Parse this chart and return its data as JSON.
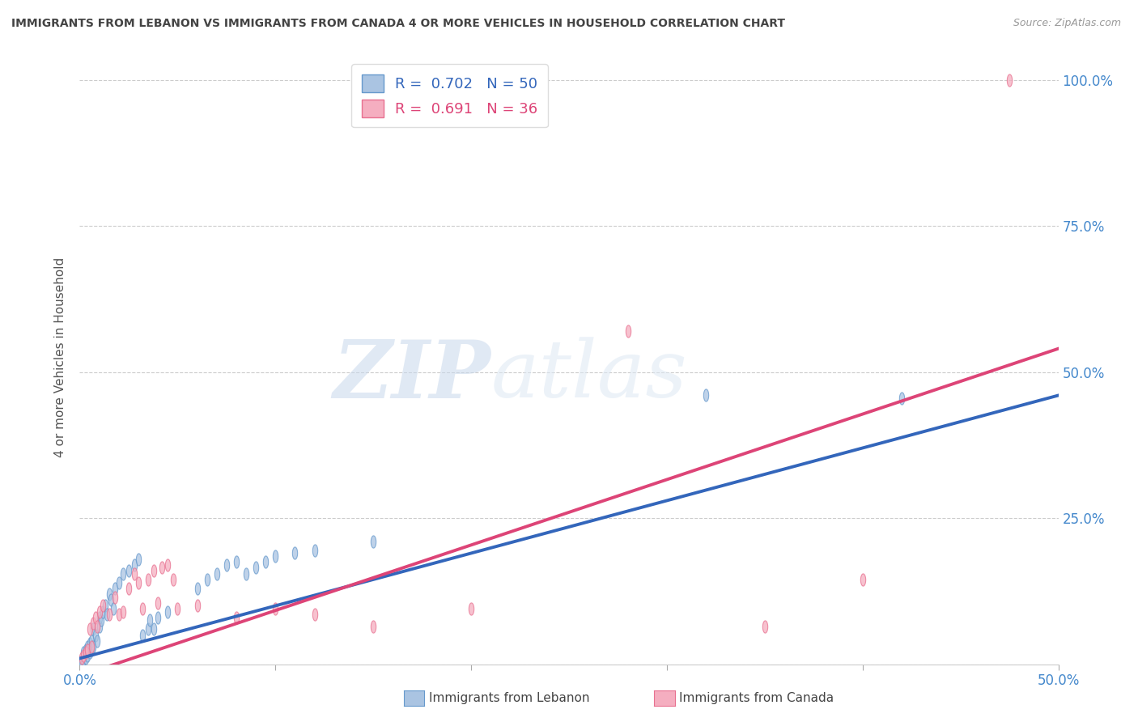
{
  "title": "IMMIGRANTS FROM LEBANON VS IMMIGRANTS FROM CANADA 4 OR MORE VEHICLES IN HOUSEHOLD CORRELATION CHART",
  "source": "Source: ZipAtlas.com",
  "ylabel": "4 or more Vehicles in Household",
  "xlim": [
    0.0,
    0.5
  ],
  "ylim": [
    0.0,
    1.05
  ],
  "legend_blue_r": "0.702",
  "legend_blue_n": "50",
  "legend_pink_r": "0.691",
  "legend_pink_n": "36",
  "blue_color": "#aac4e2",
  "pink_color": "#f5aec0",
  "blue_edge_color": "#6699cc",
  "pink_edge_color": "#e87090",
  "blue_line_color": "#3366bb",
  "pink_line_color": "#dd4477",
  "blue_label": "Immigrants from Lebanon",
  "pink_label": "Immigrants from Canada",
  "blue_scatter": [
    [
      0.001,
      0.005
    ],
    [
      0.002,
      0.008
    ],
    [
      0.002,
      0.02
    ],
    [
      0.003,
      0.01
    ],
    [
      0.003,
      0.025
    ],
    [
      0.004,
      0.015
    ],
    [
      0.004,
      0.03
    ],
    [
      0.005,
      0.02
    ],
    [
      0.005,
      0.035
    ],
    [
      0.006,
      0.025
    ],
    [
      0.006,
      0.04
    ],
    [
      0.007,
      0.03
    ],
    [
      0.007,
      0.06
    ],
    [
      0.008,
      0.05
    ],
    [
      0.009,
      0.04
    ],
    [
      0.01,
      0.065
    ],
    [
      0.01,
      0.08
    ],
    [
      0.011,
      0.075
    ],
    [
      0.012,
      0.09
    ],
    [
      0.013,
      0.1
    ],
    [
      0.014,
      0.085
    ],
    [
      0.015,
      0.12
    ],
    [
      0.016,
      0.11
    ],
    [
      0.017,
      0.095
    ],
    [
      0.018,
      0.13
    ],
    [
      0.02,
      0.14
    ],
    [
      0.022,
      0.155
    ],
    [
      0.025,
      0.16
    ],
    [
      0.028,
      0.17
    ],
    [
      0.03,
      0.18
    ],
    [
      0.032,
      0.05
    ],
    [
      0.035,
      0.06
    ],
    [
      0.036,
      0.075
    ],
    [
      0.038,
      0.06
    ],
    [
      0.04,
      0.08
    ],
    [
      0.045,
      0.09
    ],
    [
      0.06,
      0.13
    ],
    [
      0.065,
      0.145
    ],
    [
      0.07,
      0.155
    ],
    [
      0.075,
      0.17
    ],
    [
      0.08,
      0.175
    ],
    [
      0.085,
      0.155
    ],
    [
      0.09,
      0.165
    ],
    [
      0.095,
      0.175
    ],
    [
      0.1,
      0.185
    ],
    [
      0.11,
      0.19
    ],
    [
      0.12,
      0.195
    ],
    [
      0.15,
      0.21
    ],
    [
      0.32,
      0.46
    ],
    [
      0.42,
      0.455
    ]
  ],
  "pink_scatter": [
    [
      0.001,
      0.01
    ],
    [
      0.002,
      0.015
    ],
    [
      0.003,
      0.02
    ],
    [
      0.004,
      0.025
    ],
    [
      0.005,
      0.06
    ],
    [
      0.006,
      0.03
    ],
    [
      0.007,
      0.07
    ],
    [
      0.008,
      0.08
    ],
    [
      0.009,
      0.065
    ],
    [
      0.01,
      0.09
    ],
    [
      0.012,
      0.1
    ],
    [
      0.015,
      0.085
    ],
    [
      0.018,
      0.115
    ],
    [
      0.02,
      0.085
    ],
    [
      0.022,
      0.09
    ],
    [
      0.025,
      0.13
    ],
    [
      0.028,
      0.155
    ],
    [
      0.03,
      0.14
    ],
    [
      0.032,
      0.095
    ],
    [
      0.035,
      0.145
    ],
    [
      0.038,
      0.16
    ],
    [
      0.04,
      0.105
    ],
    [
      0.042,
      0.165
    ],
    [
      0.045,
      0.17
    ],
    [
      0.048,
      0.145
    ],
    [
      0.05,
      0.095
    ],
    [
      0.06,
      0.1
    ],
    [
      0.08,
      0.08
    ],
    [
      0.1,
      0.095
    ],
    [
      0.12,
      0.085
    ],
    [
      0.15,
      0.065
    ],
    [
      0.2,
      0.095
    ],
    [
      0.28,
      0.57
    ],
    [
      0.35,
      0.065
    ],
    [
      0.4,
      0.145
    ],
    [
      0.475,
      1.0
    ]
  ],
  "blue_line_x": [
    0.0,
    0.5
  ],
  "blue_line_y": [
    0.01,
    0.46
  ],
  "pink_line_x": [
    0.0,
    0.5
  ],
  "pink_line_y": [
    -0.02,
    0.54
  ],
  "watermark_zip": "ZIP",
  "watermark_atlas": "atlas",
  "background_color": "#ffffff",
  "grid_color": "#cccccc",
  "tick_label_color": "#4488cc",
  "title_color": "#444444"
}
